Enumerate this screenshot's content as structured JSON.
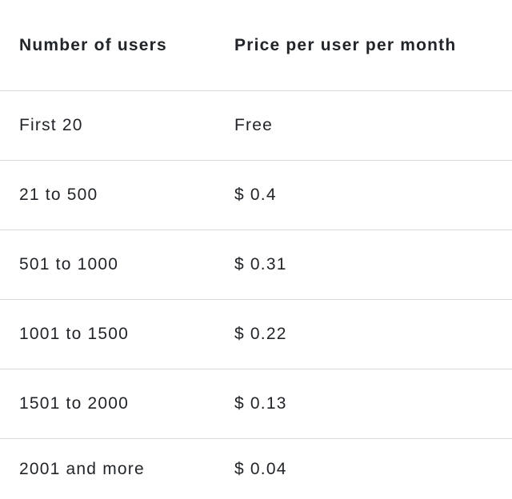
{
  "table": {
    "headers": {
      "users": "Number of users",
      "price": "Price per user per month"
    },
    "rows": [
      {
        "users": "First 20",
        "price": "Free"
      },
      {
        "users": "21 to 500",
        "price": "$ 0.4"
      },
      {
        "users": "501 to 1000",
        "price": "$ 0.31"
      },
      {
        "users": "1001 to 1500",
        "price": "$ 0.22"
      },
      {
        "users": "1501 to 2000",
        "price": "$ 0.13"
      },
      {
        "users": "2001 and more",
        "price": "$ 0.04"
      }
    ]
  },
  "colors": {
    "text": "#212529",
    "divider": "#d8d9db",
    "background": "#ffffff"
  }
}
